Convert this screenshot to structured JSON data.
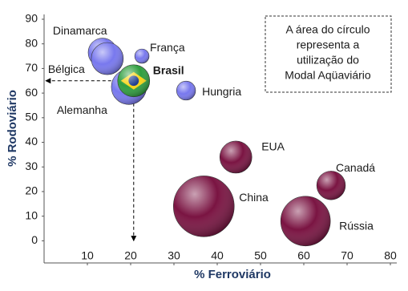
{
  "chart_data": {
    "type": "bubble",
    "x_label": "% Ferroviário",
    "y_label": "% Rodoviário",
    "xlim": [
      0,
      80
    ],
    "xticks": [
      10,
      20,
      30,
      40,
      50,
      60,
      70,
      80
    ],
    "ylim": [
      -9,
      90
    ],
    "yticks": [
      0,
      10,
      20,
      30,
      40,
      50,
      60,
      70,
      80,
      90
    ],
    "note": [
      "A área do círculo",
      "representa a",
      "utilização do",
      "Modal Aqüaviário"
    ],
    "points": [
      {
        "label": "Dinamarca",
        "x": 13.5,
        "y": 76.5,
        "size": 3.2,
        "color": "#7878ee"
      },
      {
        "label": "Bélgica",
        "x": 14.6,
        "y": 74,
        "size": 4,
        "color": "#7878ee"
      },
      {
        "label": "Alemanha",
        "x": 19.6,
        "y": 62.5,
        "size": 4.8,
        "color": "#7878ee"
      },
      {
        "label": "França",
        "x": 22.6,
        "y": 75,
        "size": 0.8,
        "color": "#7878ee"
      },
      {
        "label": "Brasil",
        "x": 20.7,
        "y": 65,
        "size": 4,
        "color": "#2e9e3e"
      },
      {
        "label": "Hungria",
        "x": 32.8,
        "y": 61,
        "size": 1.4,
        "color": "#7878ee"
      },
      {
        "label": "EUA",
        "x": 44.3,
        "y": 34,
        "size": 4,
        "color": "#7a1442"
      },
      {
        "label": "Canadá",
        "x": 66.3,
        "y": 22.5,
        "size": 3.2,
        "color": "#7a1442"
      },
      {
        "label": "China",
        "x": 36.9,
        "y": 14,
        "size": 14.4,
        "color": "#7a1442"
      },
      {
        "label": "Rússia",
        "x": 60.4,
        "y": 8,
        "size": 9.6,
        "color": "#7a1442"
      }
    ]
  }
}
